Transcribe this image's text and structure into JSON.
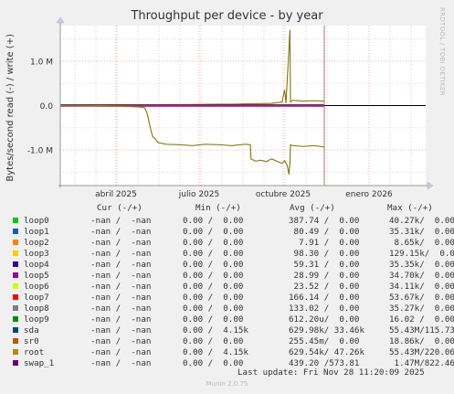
{
  "title": "Throughput per device - by year",
  "watermark": "RRDTOOL / TOBI OETIKER",
  "chart_data": {
    "type": "line",
    "title": "Throughput per device - by year",
    "ylabel": "Bytes/second read (-) / write (+)",
    "ylim": [
      -1800000,
      1800000
    ],
    "yticks": [
      {
        "value": 1000000,
        "label": "1.0 M"
      },
      {
        "value": 0,
        "label": "0.0"
      },
      {
        "value": -1000000,
        "label": "-1.0 M"
      }
    ],
    "xticks": [
      "abril 2025",
      "julio 2025",
      "octubre 2025",
      "enero 2026"
    ],
    "grid": true,
    "series": [
      {
        "name": "root",
        "color": "#CC7700"
      },
      {
        "name": "sda",
        "color": "#005E7A"
      },
      {
        "name": "swap_1",
        "color": "#660066"
      }
    ],
    "write_points": [
      [
        0.0,
        0
      ],
      [
        0.1,
        10000
      ],
      [
        0.2,
        20000
      ],
      [
        0.3,
        15000
      ],
      [
        0.4,
        20000
      ],
      [
        0.5,
        25000
      ],
      [
        0.6,
        30000
      ],
      [
        0.66,
        30000
      ],
      [
        0.7,
        40000
      ],
      [
        0.75,
        45000
      ],
      [
        0.8,
        50000
      ],
      [
        0.84,
        80000
      ],
      [
        0.85,
        350000
      ],
      [
        0.855,
        60000
      ],
      [
        0.87,
        1700000
      ],
      [
        0.872,
        80000
      ],
      [
        0.88,
        120000
      ],
      [
        0.92,
        100000
      ],
      [
        0.96,
        110000
      ],
      [
        1.0,
        100000
      ]
    ],
    "read_points": [
      [
        0.0,
        0
      ],
      [
        0.13,
        -10000
      ],
      [
        0.25,
        -20000
      ],
      [
        0.3,
        -30000
      ],
      [
        0.32,
        -50000
      ],
      [
        0.33,
        -200000
      ],
      [
        0.34,
        -480000
      ],
      [
        0.35,
        -700000
      ],
      [
        0.36,
        -750000
      ],
      [
        0.37,
        -830000
      ],
      [
        0.4,
        -870000
      ],
      [
        0.45,
        -880000
      ],
      [
        0.5,
        -900000
      ],
      [
        0.55,
        -870000
      ],
      [
        0.6,
        -880000
      ],
      [
        0.65,
        -900000
      ],
      [
        0.7,
        -870000
      ],
      [
        0.72,
        -880000
      ],
      [
        0.722,
        -1200000
      ],
      [
        0.74,
        -1250000
      ],
      [
        0.76,
        -1230000
      ],
      [
        0.78,
        -1260000
      ],
      [
        0.8,
        -1200000
      ],
      [
        0.82,
        -1250000
      ],
      [
        0.84,
        -1300000
      ],
      [
        0.85,
        -1240000
      ],
      [
        0.86,
        -1350000
      ],
      [
        0.866,
        -1550000
      ],
      [
        0.87,
        -1300000
      ],
      [
        0.872,
        -880000
      ],
      [
        0.88,
        -900000
      ],
      [
        0.92,
        -920000
      ],
      [
        0.96,
        -900000
      ],
      [
        1.0,
        -930000
      ]
    ]
  },
  "legend": {
    "headers": {
      "cur": "Cur (-/+)",
      "min": "Min (-/+)",
      "avg": "Avg (-/+)",
      "max": "Max (-/+)"
    },
    "rows": [
      {
        "name": "loop0",
        "color": "#00CC00",
        "cur": "-nan /  -nan",
        "min": "0.00 /  0.00",
        "avg": "387.74 /  0.00",
        "max": "40.27k/  0.00"
      },
      {
        "name": "loop1",
        "color": "#0066B3",
        "cur": "-nan /  -nan",
        "min": "0.00 /  0.00",
        "avg": " 80.49 /  0.00",
        "max": "35.31k/  0.00"
      },
      {
        "name": "loop2",
        "color": "#FF8000",
        "cur": "-nan /  -nan",
        "min": "0.00 /  0.00",
        "avg": "  7.91 /  0.00",
        "max": " 8.65k/  0.00"
      },
      {
        "name": "loop3",
        "color": "#FFCC00",
        "cur": "-nan /  -nan",
        "min": "0.00 /  0.00",
        "avg": " 98.30 /  0.00",
        "max": "129.15k/  0.00"
      },
      {
        "name": "loop4",
        "color": "#330099",
        "cur": "-nan /  -nan",
        "min": "0.00 /  0.00",
        "avg": " 59.31 /  0.00",
        "max": "35.35k/  0.00"
      },
      {
        "name": "loop5",
        "color": "#990099",
        "cur": "-nan /  -nan",
        "min": "0.00 /  0.00",
        "avg": " 28.99 /  0.00",
        "max": "34.70k/  0.00"
      },
      {
        "name": "loop6",
        "color": "#CCFF00",
        "cur": "-nan /  -nan",
        "min": "0.00 /  0.00",
        "avg": " 23.52 /  0.00",
        "max": "34.11k/  0.00"
      },
      {
        "name": "loop7",
        "color": "#FF0000",
        "cur": "-nan /  -nan",
        "min": "0.00 /  0.00",
        "avg": "166.14 /  0.00",
        "max": "53.67k/  0.00"
      },
      {
        "name": "loop8",
        "color": "#808080",
        "cur": "-nan /  -nan",
        "min": "0.00 /  0.00",
        "avg": "133.02 /  0.00",
        "max": "35.27k/  0.00"
      },
      {
        "name": "loop9",
        "color": "#008F00",
        "cur": "-nan /  -nan",
        "min": "0.00 /  0.00",
        "avg": "612.20u/  0.00",
        "max": "16.02 /  0.00"
      },
      {
        "name": "sda",
        "color": "#00487D",
        "cur": "-nan /  -nan",
        "min": "0.00 /  4.15k",
        "avg": "629.98k/ 33.46k",
        "max": "55.43M/115.73M"
      },
      {
        "name": "sr0",
        "color": "#B35A00",
        "cur": "-nan /  -nan",
        "min": "0.00 /  0.00",
        "avg": "255.45m/  0.00",
        "max": "18.86k/  0.00"
      },
      {
        "name": "root",
        "color": "#B38F00",
        "cur": "-nan /  -nan",
        "min": "0.00 /  4.15k",
        "avg": "629.54k/ 47.26k",
        "max": "55.43M/220.06M"
      },
      {
        "name": "swap_1",
        "color": "#6B006B",
        "cur": "-nan /  -nan",
        "min": "0.00 /  0.00",
        "avg": "439.20 /573.81",
        "max": " 1.47M/822.46k"
      }
    ]
  },
  "last_update": "Last update: Fri Nov 28 11:20:09 2025",
  "munin_version": "Munin 2.0.75"
}
